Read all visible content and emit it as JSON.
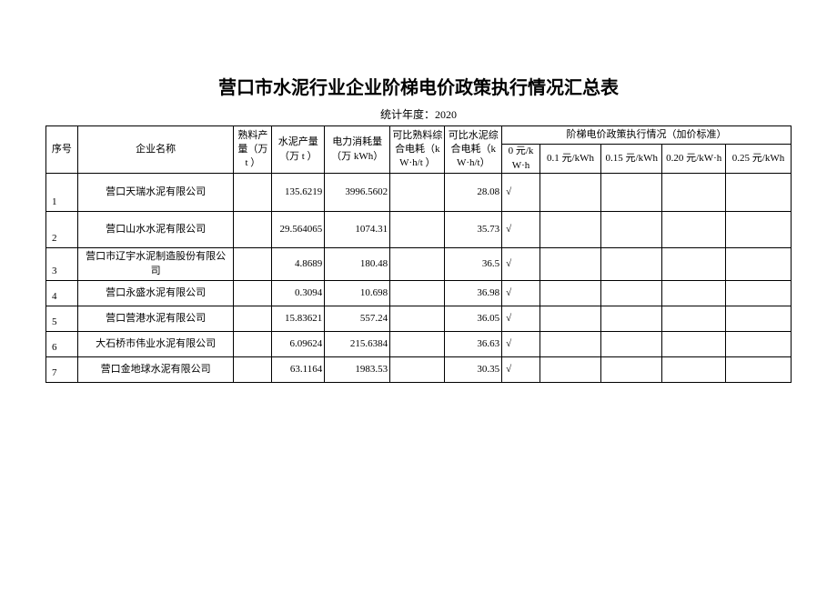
{
  "title": "营口市水泥行业企业阶梯电价政策执行情况汇总表",
  "subtitle_label": "统计年度：",
  "subtitle_year": "2020",
  "header": {
    "seq": "序号",
    "name": "企业名称",
    "clinker_output": "熟料产量（万 t ）",
    "cement_output": "水泥产量（万 t ）",
    "power_consumption": "电力消耗量（万 kWh）",
    "clinker_energy": "可比熟料综合电耗（kW·h/t ）",
    "cement_energy": "可比水泥综合电耗（kW·h/t）",
    "tier_title": "阶梯电价政策执行情况（加价标准）",
    "tier0": "0 元/kW·h",
    "tier1": "0.1 元/kWh",
    "tier2": "0.15 元/kWh",
    "tier3": "0.20 元/kW·h",
    "tier4": "0.25 元/kWh"
  },
  "rows": [
    {
      "seq": "1",
      "name": "营口天瑞水泥有限公司",
      "clinker": "",
      "cement": "135.6219",
      "power": "3996.5602",
      "clke": "",
      "ceme": "28.08",
      "t0": "√",
      "t1": "",
      "t2": "",
      "t3": "",
      "t4": ""
    },
    {
      "seq": "2",
      "name": "营口山水水泥有限公司",
      "clinker": "",
      "cement": "29.564065",
      "power": "1074.31",
      "clke": "",
      "ceme": "35.73",
      "t0": "√",
      "t1": "",
      "t2": "",
      "t3": "",
      "t4": ""
    },
    {
      "seq": "3",
      "name": "营口市辽宇水泥制造股份有限公司",
      "clinker": "",
      "cement": "4.8689",
      "power": "180.48",
      "clke": "",
      "ceme": "36.5",
      "t0": "√",
      "t1": "",
      "t2": "",
      "t3": "",
      "t4": ""
    },
    {
      "seq": "4",
      "name": "营口永盛水泥有限公司",
      "clinker": "",
      "cement": "0.3094",
      "power": "10.698",
      "clke": "",
      "ceme": "36.98",
      "t0": "√",
      "t1": "",
      "t2": "",
      "t3": "",
      "t4": ""
    },
    {
      "seq": "5",
      "name": "营口营港水泥有限公司",
      "clinker": "",
      "cement": "15.83621",
      "power": "557.24",
      "clke": "",
      "ceme": "36.05",
      "t0": "√",
      "t1": "",
      "t2": "",
      "t3": "",
      "t4": ""
    },
    {
      "seq": "6",
      "name": "大石桥市伟业水泥有限公司",
      "clinker": "",
      "cement": "6.09624",
      "power": "215.6384",
      "clke": "",
      "ceme": "36.63",
      "t0": "√",
      "t1": "",
      "t2": "",
      "t3": "",
      "t4": ""
    },
    {
      "seq": "7",
      "name": "营口金地球水泥有限公司",
      "clinker": "",
      "cement": "63.1164",
      "power": "1983.53",
      "clke": "",
      "ceme": "30.35",
      "t0": "√",
      "t1": "",
      "t2": "",
      "t3": "",
      "t4": ""
    }
  ],
  "style": {
    "background_color": "#ffffff",
    "text_color": "#000000",
    "border_color": "#000000",
    "title_fontsize": 20,
    "body_fontsize": 11,
    "font_family": "SimSun"
  }
}
